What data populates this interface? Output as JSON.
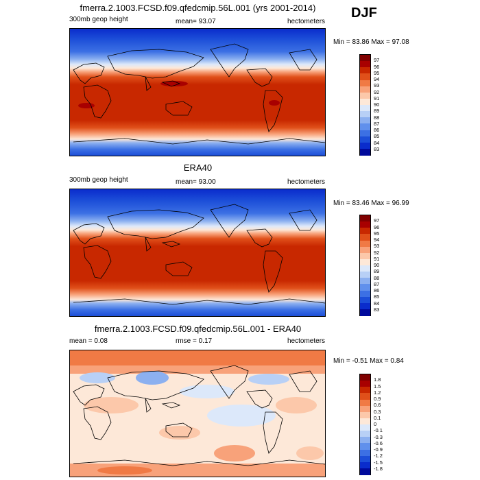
{
  "season": "DJF",
  "panels": [
    {
      "id": "model",
      "title": "fmerra.2.1003.FCSD.f09.qfedcmip.56L.001 (yrs 2001-2014)",
      "left_label": "300mb geop height",
      "center_label": "mean=  93.07",
      "right_label": "hectometers",
      "minmax": "Min =  83.86 Max =  97.08",
      "colorbar_labels": [
        "97",
        "96",
        "95",
        "94",
        "93",
        "92",
        "91",
        "90",
        "89",
        "88",
        "87",
        "86",
        "85",
        "84",
        "83"
      ]
    },
    {
      "id": "obs",
      "title": "ERA40",
      "left_label": "300mb geop height",
      "center_label": "mean=  93.00",
      "right_label": "hectometers",
      "minmax": "Min =  83.46 Max =  96.99",
      "colorbar_labels": [
        "97",
        "96",
        "95",
        "94",
        "93",
        "92",
        "91",
        "90",
        "89",
        "88",
        "87",
        "86",
        "85",
        "84",
        "83"
      ]
    },
    {
      "id": "diff",
      "title": "fmerra.2.1003.FCSD.f09.qfedcmip.56L.001 - ERA40",
      "left_label": "mean =  0.08",
      "center_label": "rmse =  0.17",
      "right_label": "hectometers",
      "minmax": "Min =  -0.51 Max =  0.84",
      "colorbar_labels": [
        "1.8",
        "1.5",
        "1.2",
        "0.9",
        "0.6",
        "0.3",
        "0.1",
        "0",
        "-0.1",
        "-0.3",
        "-0.6",
        "-0.9",
        "-1.2",
        "-1.5",
        "-1.8"
      ]
    }
  ],
  "palette": [
    "#800000",
    "#a80000",
    "#c82800",
    "#e0501a",
    "#f07a45",
    "#f8a27a",
    "#fcc8aa",
    "#fde8d8",
    "#dce8fa",
    "#b8d0f6",
    "#8cb0f0",
    "#6090ec",
    "#3c70e4",
    "#1c4ed8",
    "#0a2ccc",
    "#000a9c"
  ]
}
